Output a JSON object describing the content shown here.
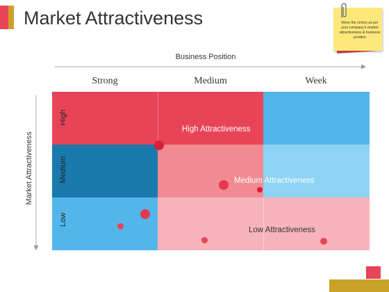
{
  "title": "Market Attractiveness",
  "sticky_note": {
    "text": "Move the circles as per your company's market attractiveness & business position"
  },
  "axes": {
    "x_label": "Business Position",
    "y_label": "Market Attractiveness"
  },
  "columns": [
    "Strong",
    "Medium",
    "Week"
  ],
  "rows": [
    "High",
    "Medium",
    "Low"
  ],
  "zones": {
    "high": "High Attractiveness",
    "medium": "Medium Attractiveness",
    "low": "Low Attractiveness"
  },
  "colors": {
    "red": "#e84458",
    "pink_medium": "#f28a92",
    "pink_light": "#f7b3ba",
    "blue_bright": "#52b6ea",
    "blue_light": "#8dd4f4",
    "blue_dark": "#1a7aad",
    "dot": "#d9213a"
  }
}
